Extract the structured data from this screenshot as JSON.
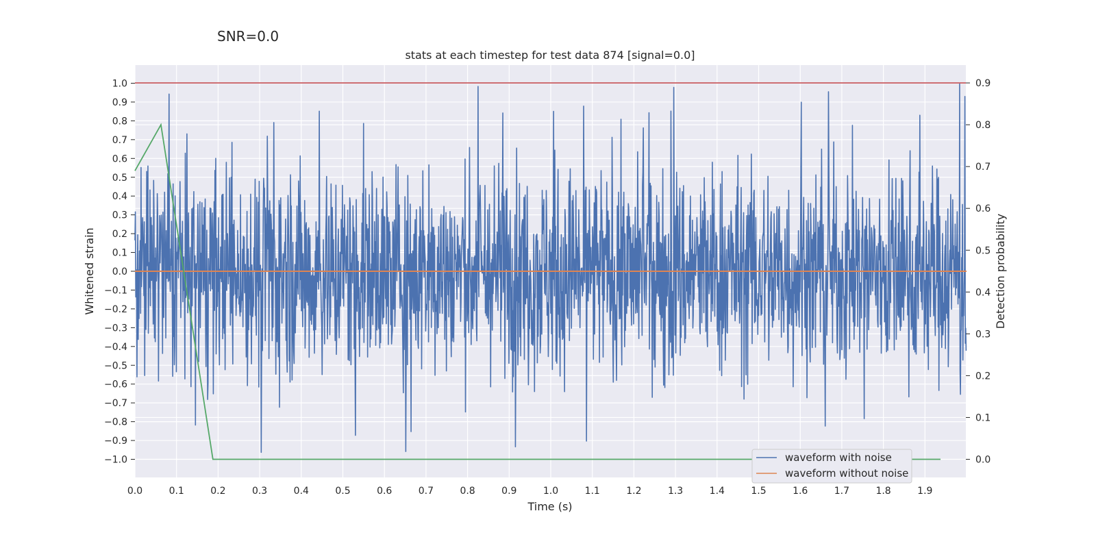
{
  "chart_data": {
    "type": "line",
    "suptitle": "SNR=0.0",
    "title": "stats at each timestep for test data 874 [signal=0.0]",
    "xlabel": "Time (s)",
    "ylabel": "Whitened strain",
    "y2label": "Detection probability",
    "xlim": [
      0.0,
      2.0
    ],
    "ylim": [
      -1.1,
      1.1
    ],
    "y2lim": [
      -0.04,
      0.94
    ],
    "x_ticks": [
      "0.0",
      "0.1",
      "0.2",
      "0.3",
      "0.4",
      "0.5",
      "0.6",
      "0.7",
      "0.8",
      "0.9",
      "1.0",
      "1.1",
      "1.2",
      "1.3",
      "1.4",
      "1.5",
      "1.6",
      "1.7",
      "1.8",
      "1.9"
    ],
    "y_ticks": [
      "1.0",
      "0.9",
      "0.8",
      "0.7",
      "0.6",
      "0.5",
      "0.4",
      "0.3",
      "0.2",
      "0.1",
      "0.0",
      "−0.1",
      "−0.2",
      "−0.3",
      "−0.4",
      "−0.5",
      "−0.6",
      "−0.7",
      "−0.8",
      "−0.9",
      "−1.0"
    ],
    "y2_ticks": [
      "0.9",
      "0.8",
      "0.7",
      "0.6",
      "0.5",
      "0.4",
      "0.3",
      "0.2",
      "0.1",
      "0.0"
    ],
    "threshold": {
      "value": 0.9,
      "axis": "y2",
      "color": "#c44e52"
    },
    "series": [
      {
        "name": "waveform with noise",
        "axis": "y",
        "color": "#4c72b0",
        "kind": "noise",
        "x_range": [
          0.0,
          2.0
        ],
        "n_points": 2048,
        "y_extent": [
          -1.0,
          1.0
        ]
      },
      {
        "name": "waveform without noise",
        "axis": "y",
        "color": "#dd8452",
        "x": [
          0.0,
          2.0
        ],
        "y": [
          0.0,
          0.0
        ]
      },
      {
        "name": "detection probability",
        "axis": "y2",
        "color": "#55a868",
        "x": [
          0.0,
          0.0625,
          0.1875,
          0.25,
          0.5,
          1.0,
          1.5,
          1.9375
        ],
        "y": [
          0.69,
          0.8,
          0.0,
          0.0,
          0.0,
          0.0,
          0.0,
          0.0
        ]
      }
    ],
    "legend": {
      "placement": "lower-right",
      "entries": [
        "waveform with noise",
        "waveform without noise"
      ]
    }
  }
}
